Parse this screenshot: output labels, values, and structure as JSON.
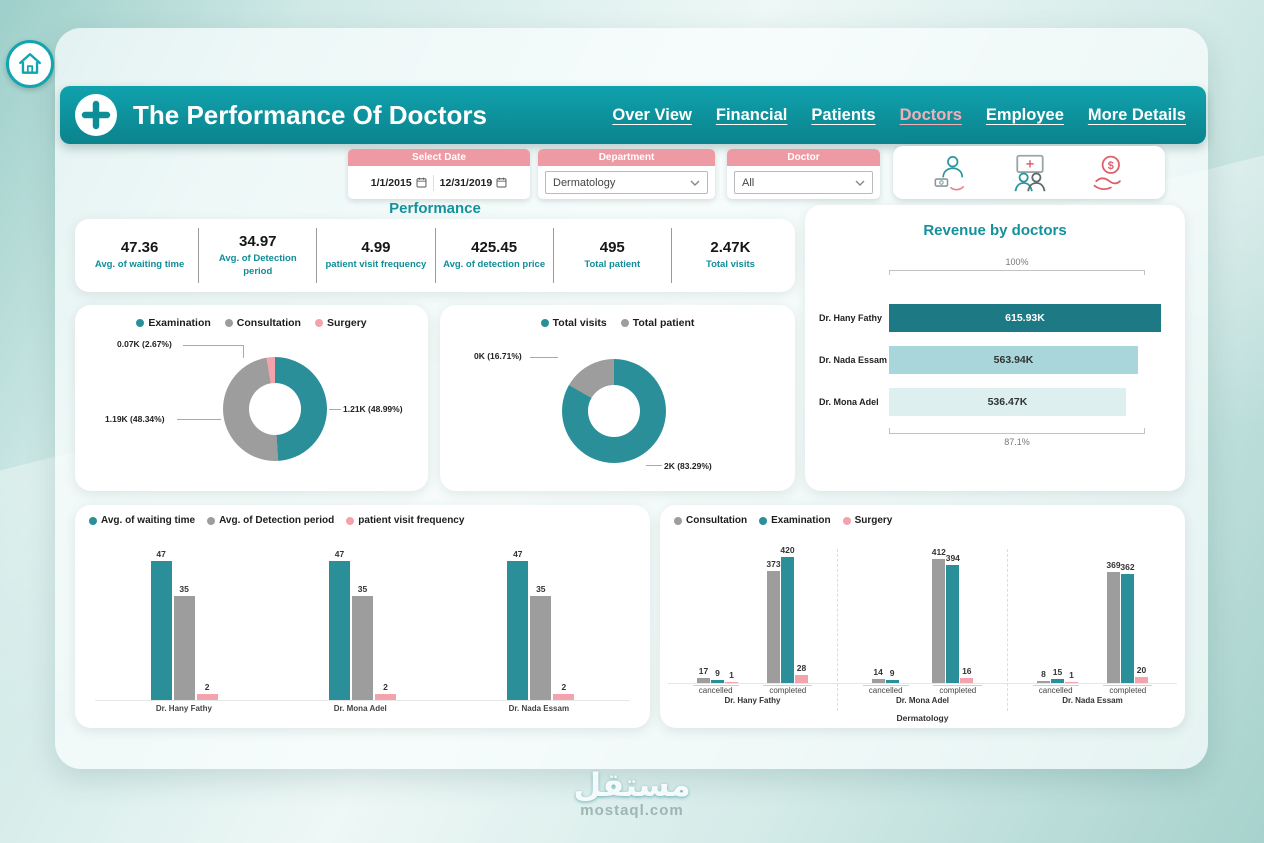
{
  "header": {
    "title": "The Performance Of Doctors",
    "nav": [
      {
        "label": "Over View",
        "active": false
      },
      {
        "label": "Financial",
        "active": false
      },
      {
        "label": "Patients",
        "active": false
      },
      {
        "label": "Doctors",
        "active": true
      },
      {
        "label": "Employee",
        "active": false
      },
      {
        "label": "More Details",
        "active": false
      }
    ]
  },
  "filters": {
    "date": {
      "label": "Select Date",
      "start": "1/1/2015",
      "end": "12/31/2019"
    },
    "department": {
      "label": "Department",
      "value": "Dermatology"
    },
    "doctor": {
      "label": "Doctor",
      "value": "All"
    },
    "quick_icons": [
      "doctor-payment-icon",
      "medical-team-icon",
      "hand-dollar-icon"
    ]
  },
  "performance": {
    "title": "Performance",
    "kpis": [
      {
        "value": "47.36",
        "label": "Avg. of waiting time"
      },
      {
        "value": "34.97",
        "label": "Avg. of Detection period"
      },
      {
        "value": "4.99",
        "label": "patient visit frequency"
      },
      {
        "value": "425.45",
        "label": "Avg. of detection price"
      },
      {
        "value": "495",
        "label": "Total patient"
      },
      {
        "value": "2.47K",
        "label": "Total visits"
      }
    ]
  },
  "colors": {
    "teal": "#2b8f99",
    "teal_dark": "#1d7a84",
    "gray": "#9d9d9d",
    "pink": "#f2a3ac",
    "header_teal": "#0e96a1",
    "accent_pink": "#ee9aa4"
  },
  "chart_data": [
    {
      "id": "services_donut",
      "type": "pie",
      "slices": [
        {
          "name": "Examination",
          "label": "1.21K (48.99%)",
          "value": 1210,
          "pct": 48.99,
          "color": "#2b8f99"
        },
        {
          "name": "Consultation",
          "label": "1.19K (48.34%)",
          "value": 1190,
          "pct": 48.34,
          "color": "#9d9d9d"
        },
        {
          "name": "Surgery",
          "label": "0.07K (2.67%)",
          "value": 70,
          "pct": 2.67,
          "color": "#f2a3ac"
        }
      ]
    },
    {
      "id": "visits_donut",
      "type": "pie",
      "slices": [
        {
          "name": "Total visits",
          "label": "2K (83.29%)",
          "value": 2470,
          "pct": 83.29,
          "color": "#2b8f99"
        },
        {
          "name": "Total patient",
          "label": "0K (16.71%)",
          "value": 495,
          "pct": 16.71,
          "color": "#9d9d9d"
        }
      ]
    },
    {
      "id": "revenue_bar",
      "type": "bar",
      "title": "Revenue by doctors",
      "axis_top": "100%",
      "axis_bottom": "87.1%",
      "bars": [
        {
          "name": "Dr. Hany Fathy",
          "label": "615.93K",
          "value": 615.93,
          "color": "#1d7a84",
          "text": "#ffffff"
        },
        {
          "name": "Dr. Nada Essam",
          "label": "563.94K",
          "value": 563.94,
          "color": "#a9d6da",
          "text": "#333333"
        },
        {
          "name": "Dr. Mona Adel",
          "label": "536.47K",
          "value": 536.47,
          "color": "#ddefef",
          "text": "#333333"
        }
      ]
    },
    {
      "id": "metrics_by_doctor",
      "type": "bar",
      "legend": [
        {
          "name": "Avg. of waiting time",
          "color": "#2b8f99"
        },
        {
          "name": "Avg. of Detection period",
          "color": "#9d9d9d"
        },
        {
          "name": "patient visit frequency",
          "color": "#f2a3ac"
        }
      ],
      "categories": [
        "Dr. Hany Fathy",
        "Dr. Mona Adel",
        "Dr. Nada Essam"
      ],
      "series": [
        {
          "name": "Avg. of waiting time",
          "color": "#2b8f99",
          "values": [
            47,
            47,
            47
          ]
        },
        {
          "name": "Avg. of Detection period",
          "color": "#9d9d9d",
          "values": [
            35,
            35,
            35
          ]
        },
        {
          "name": "patient visit frequency",
          "color": "#f2a3ac",
          "values": [
            2,
            2,
            2
          ]
        }
      ],
      "ymax": 50
    },
    {
      "id": "status_by_doctor",
      "type": "bar",
      "legend": [
        {
          "name": "Consultation",
          "color": "#9d9d9d"
        },
        {
          "name": "Examination",
          "color": "#2b8f99"
        },
        {
          "name": "Surgery",
          "color": "#f2a3ac"
        }
      ],
      "department_label": "Dermatology",
      "groups": [
        {
          "doctor": "Dr. Hany Fathy",
          "clusters": [
            {
              "status": "cancelled",
              "values": [
                17,
                9,
                1
              ]
            },
            {
              "status": "completed",
              "values": [
                373,
                420,
                28
              ]
            }
          ]
        },
        {
          "doctor": "Dr. Mona Adel",
          "clusters": [
            {
              "status": "cancelled",
              "values": [
                14,
                9,
                0
              ]
            },
            {
              "status": "completed",
              "values": [
                412,
                394,
                16
              ]
            }
          ]
        },
        {
          "doctor": "Dr. Nada Essam",
          "clusters": [
            {
              "status": "cancelled",
              "values": [
                8,
                15,
                1
              ]
            },
            {
              "status": "completed",
              "values": [
                369,
                362,
                20
              ]
            }
          ]
        }
      ],
      "ymax": 450
    }
  ],
  "watermark": {
    "arabic": "مستقل",
    "site": "mostaql.com"
  }
}
